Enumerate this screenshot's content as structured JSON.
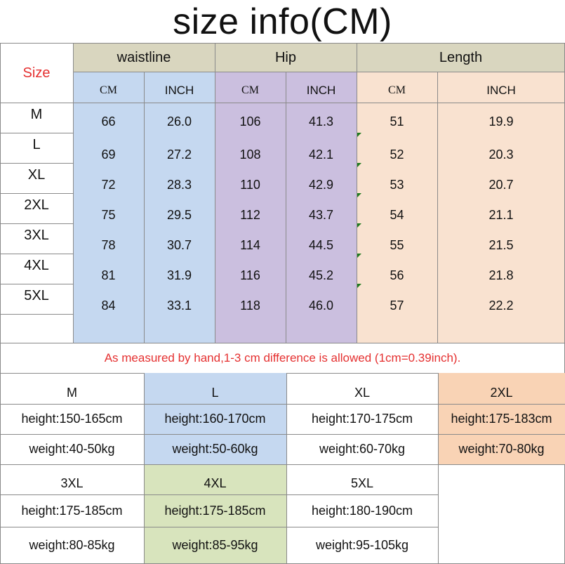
{
  "title": "size info(CM)",
  "table": {
    "size_label": "Size",
    "groups": [
      {
        "label": "waistline",
        "color": "#d9d6bf",
        "sub_color": "#c5d8f0"
      },
      {
        "label": "Hip",
        "color": "#d9d6bf",
        "sub_color": "#cbbfdf"
      },
      {
        "label": "Length",
        "color": "#d9d6bf",
        "sub_color": "#f9e2d0"
      }
    ],
    "units": [
      "CM",
      "INCH",
      "CM",
      "INCH",
      "CM",
      "INCH"
    ],
    "rows": [
      {
        "size": "M",
        "values": [
          "66",
          "26.0",
          "106",
          "41.3",
          "51",
          "19.9"
        ]
      },
      {
        "size": "L",
        "values": [
          "69",
          "27.2",
          "108",
          "42.1",
          "52",
          "20.3"
        ]
      },
      {
        "size": "XL",
        "values": [
          "72",
          "28.3",
          "110",
          "42.9",
          "53",
          "20.7"
        ]
      },
      {
        "size": "2XL",
        "values": [
          "75",
          "29.5",
          "112",
          "43.7",
          "54",
          "21.1"
        ]
      },
      {
        "size": "3XL",
        "values": [
          "78",
          "30.7",
          "114",
          "44.5",
          "55",
          "21.5"
        ]
      },
      {
        "size": "4XL",
        "values": [
          "81",
          "31.9",
          "116",
          "45.2",
          "56",
          "21.8"
        ]
      },
      {
        "size": "5XL",
        "values": [
          "84",
          "33.1",
          "118",
          "46.0",
          "57",
          "22.2"
        ]
      }
    ]
  },
  "note": "As measured by hand,1-3 cm difference is allowed (1cm=0.39inch).",
  "recommend": [
    {
      "size": "M",
      "height": "height:150-165cm",
      "weight": "weight:40-50kg",
      "color": "#ffffff"
    },
    {
      "size": "L",
      "height": "height:160-170cm",
      "weight": "weight:50-60kg",
      "color": "#c5d8f0"
    },
    {
      "size": "XL",
      "height": "height:170-175cm",
      "weight": "weight:60-70kg",
      "color": "#ffffff"
    },
    {
      "size": "2XL",
      "height": "height:175-183cm",
      "weight": "weight:70-80kg",
      "color": "#f9d3b5"
    },
    {
      "size": "3XL",
      "height": "height:175-185cm",
      "weight": "weight:80-85kg",
      "color": "#ffffff"
    },
    {
      "size": "4XL",
      "height": "height:175-185cm",
      "weight": "weight:85-95kg",
      "color": "#d8e4bd"
    },
    {
      "size": "5XL",
      "height": "height:180-190cm",
      "weight": "weight:95-105kg",
      "color": "#ffffff"
    }
  ],
  "colors": {
    "note_red": "#e53030",
    "grid": "#8a8a8a",
    "tick_green": "#1f7a1f"
  }
}
